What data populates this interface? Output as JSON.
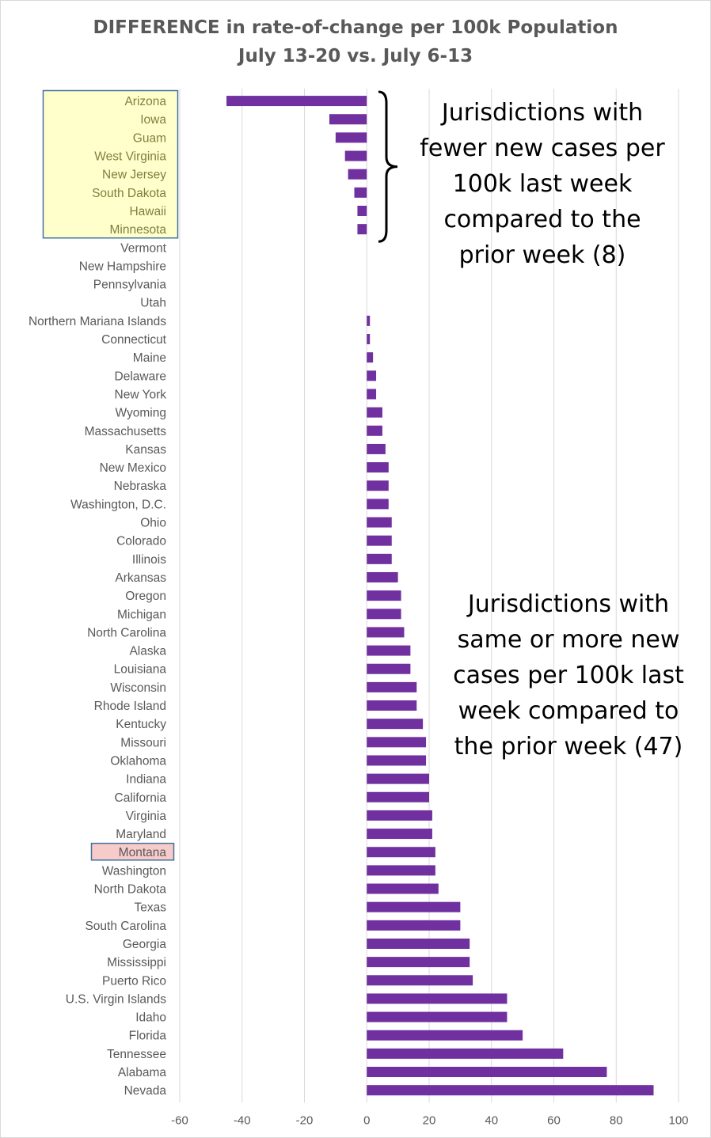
{
  "chart_data": {
    "type": "bar",
    "orientation": "horizontal",
    "title": "DIFFERENCE in rate-of-change per 100k Population",
    "subtitle": "July 13-20 vs. July 6-13",
    "xlim": [
      -60,
      100
    ],
    "xticks": [
      "-60",
      "-40",
      "-20",
      "0",
      "20",
      "40",
      "60",
      "80",
      "100"
    ],
    "grid": "vertical",
    "bar_color": "#7030a0",
    "highlight_fewer_color": "#ffffcc",
    "highlight_montana_color": "#f8cbcb",
    "highlight_border_color": "#41719c",
    "categories": [
      "Arizona",
      "Iowa",
      "Guam",
      "West Virginia",
      "New Jersey",
      "South Dakota",
      "Hawaii",
      "Minnesota",
      "Vermont",
      "New Hampshire",
      "Pennsylvania",
      "Utah",
      "Northern Mariana Islands",
      "Connecticut",
      "Maine",
      "Delaware",
      "New York",
      "Wyoming",
      "Massachusetts",
      "Kansas",
      "New Mexico",
      "Nebraska",
      "Washington, D.C.",
      "Ohio",
      "Colorado",
      "Illinois",
      "Arkansas",
      "Oregon",
      "Michigan",
      "North Carolina",
      "Alaska",
      "Louisiana",
      "Wisconsin",
      "Rhode Island",
      "Kentucky",
      "Missouri",
      "Oklahoma",
      "Indiana",
      "California",
      "Virginia",
      "Maryland",
      "Montana",
      "Washington",
      "North Dakota",
      "Texas",
      "South Carolina",
      "Georgia",
      "Mississippi",
      "Puerto Rico",
      "U.S. Virgin Islands",
      "Idaho",
      "Florida",
      "Tennessee",
      "Alabama",
      "Nevada"
    ],
    "values": [
      -45,
      -12,
      -10,
      -7,
      -6,
      -4,
      -3,
      -3,
      0,
      0,
      0,
      0,
      1,
      1,
      2,
      3,
      3,
      5,
      5,
      6,
      7,
      7,
      7,
      8,
      8,
      8,
      10,
      11,
      11,
      12,
      14,
      14,
      16,
      16,
      18,
      19,
      19,
      20,
      20,
      21,
      21,
      22,
      22,
      23,
      30,
      30,
      33,
      33,
      34,
      45,
      45,
      50,
      63,
      77,
      92
    ],
    "highlight_fewer_count": 8,
    "highlight_montana_index": 41
  },
  "annotations": {
    "fewer": [
      "Jurisdictions with",
      "fewer new cases per",
      "100k last week",
      "compared to the",
      "prior week (8)"
    ],
    "more": [
      "Jurisdictions with",
      "same or more new",
      "cases per 100k last",
      "week compared to",
      "the prior week (47)"
    ]
  }
}
